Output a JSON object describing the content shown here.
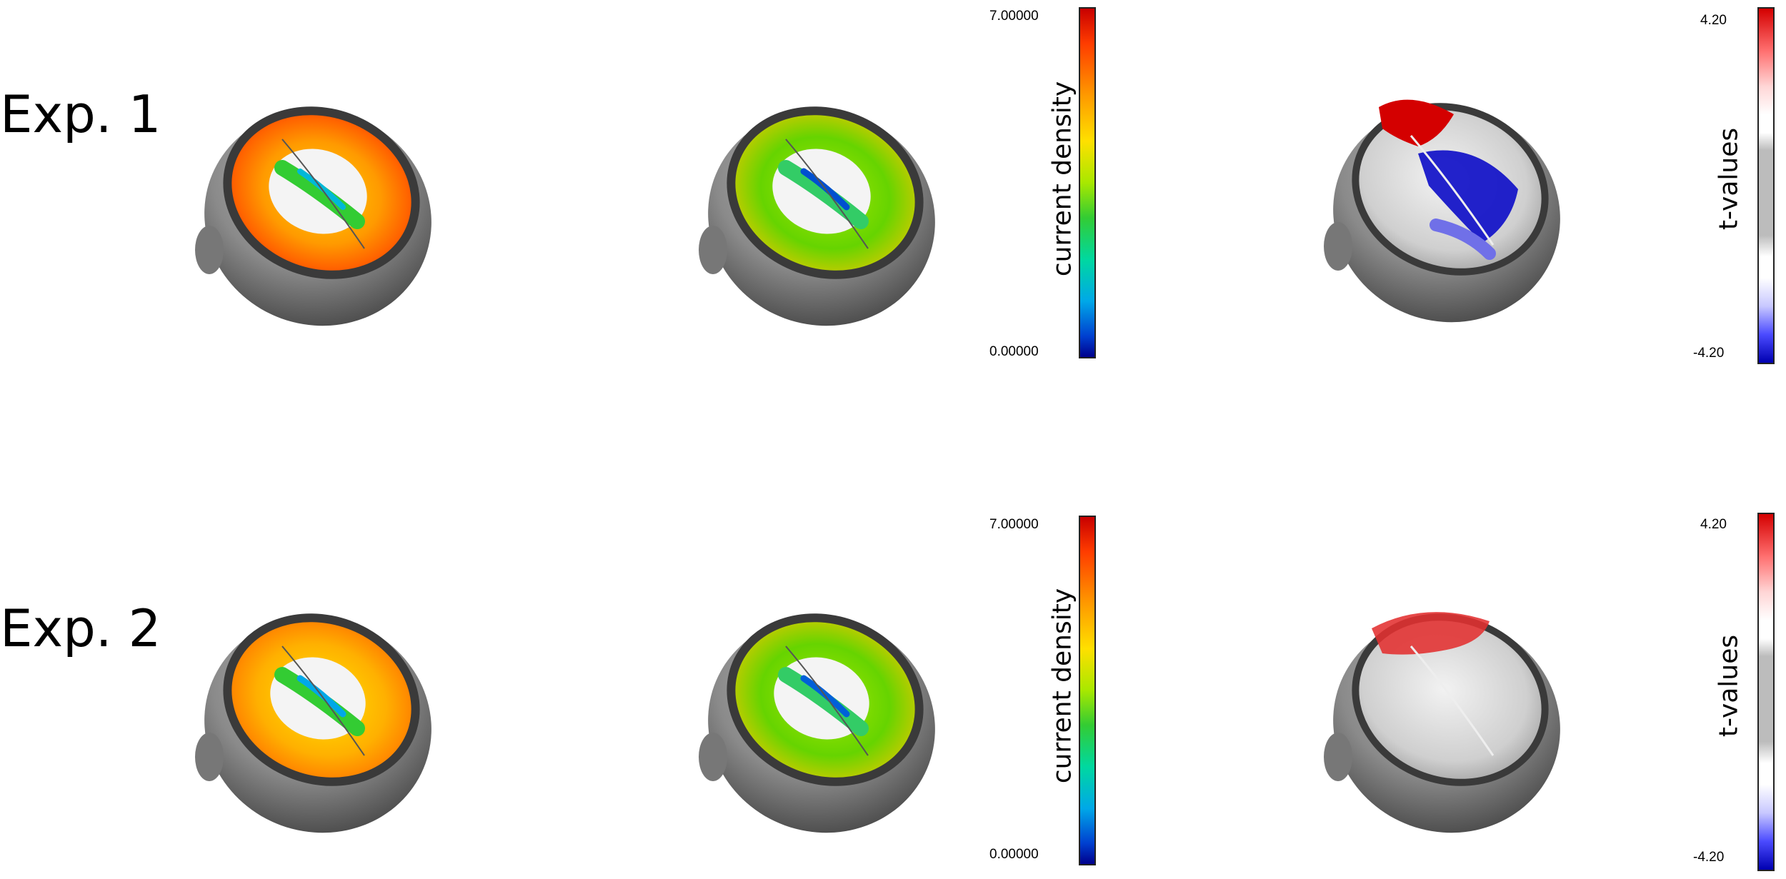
{
  "rows": [
    {
      "label": "Exp. 1",
      "density_scale": {
        "max": "7.00000",
        "min": "0.00000",
        "title": "current density"
      },
      "t_scale": {
        "max": "4.20",
        "min": "-4.20",
        "title": "t-values"
      }
    },
    {
      "label": "Exp. 2",
      "density_scale": {
        "max": "7.00000",
        "min": "0.00000",
        "title": "current density"
      },
      "t_scale": {
        "max": "4.20",
        "min": "-4.20",
        "title": "t-values"
      }
    }
  ],
  "colors": {
    "scalp": "#8a8a8a",
    "jet_hot": "#ff3000",
    "jet_mid": "#ffe000",
    "jet_cool": "#33cc33",
    "t_positive": "#d40000",
    "t_negative": "#0000b0"
  },
  "icons": [
    "brain-map-icon"
  ]
}
